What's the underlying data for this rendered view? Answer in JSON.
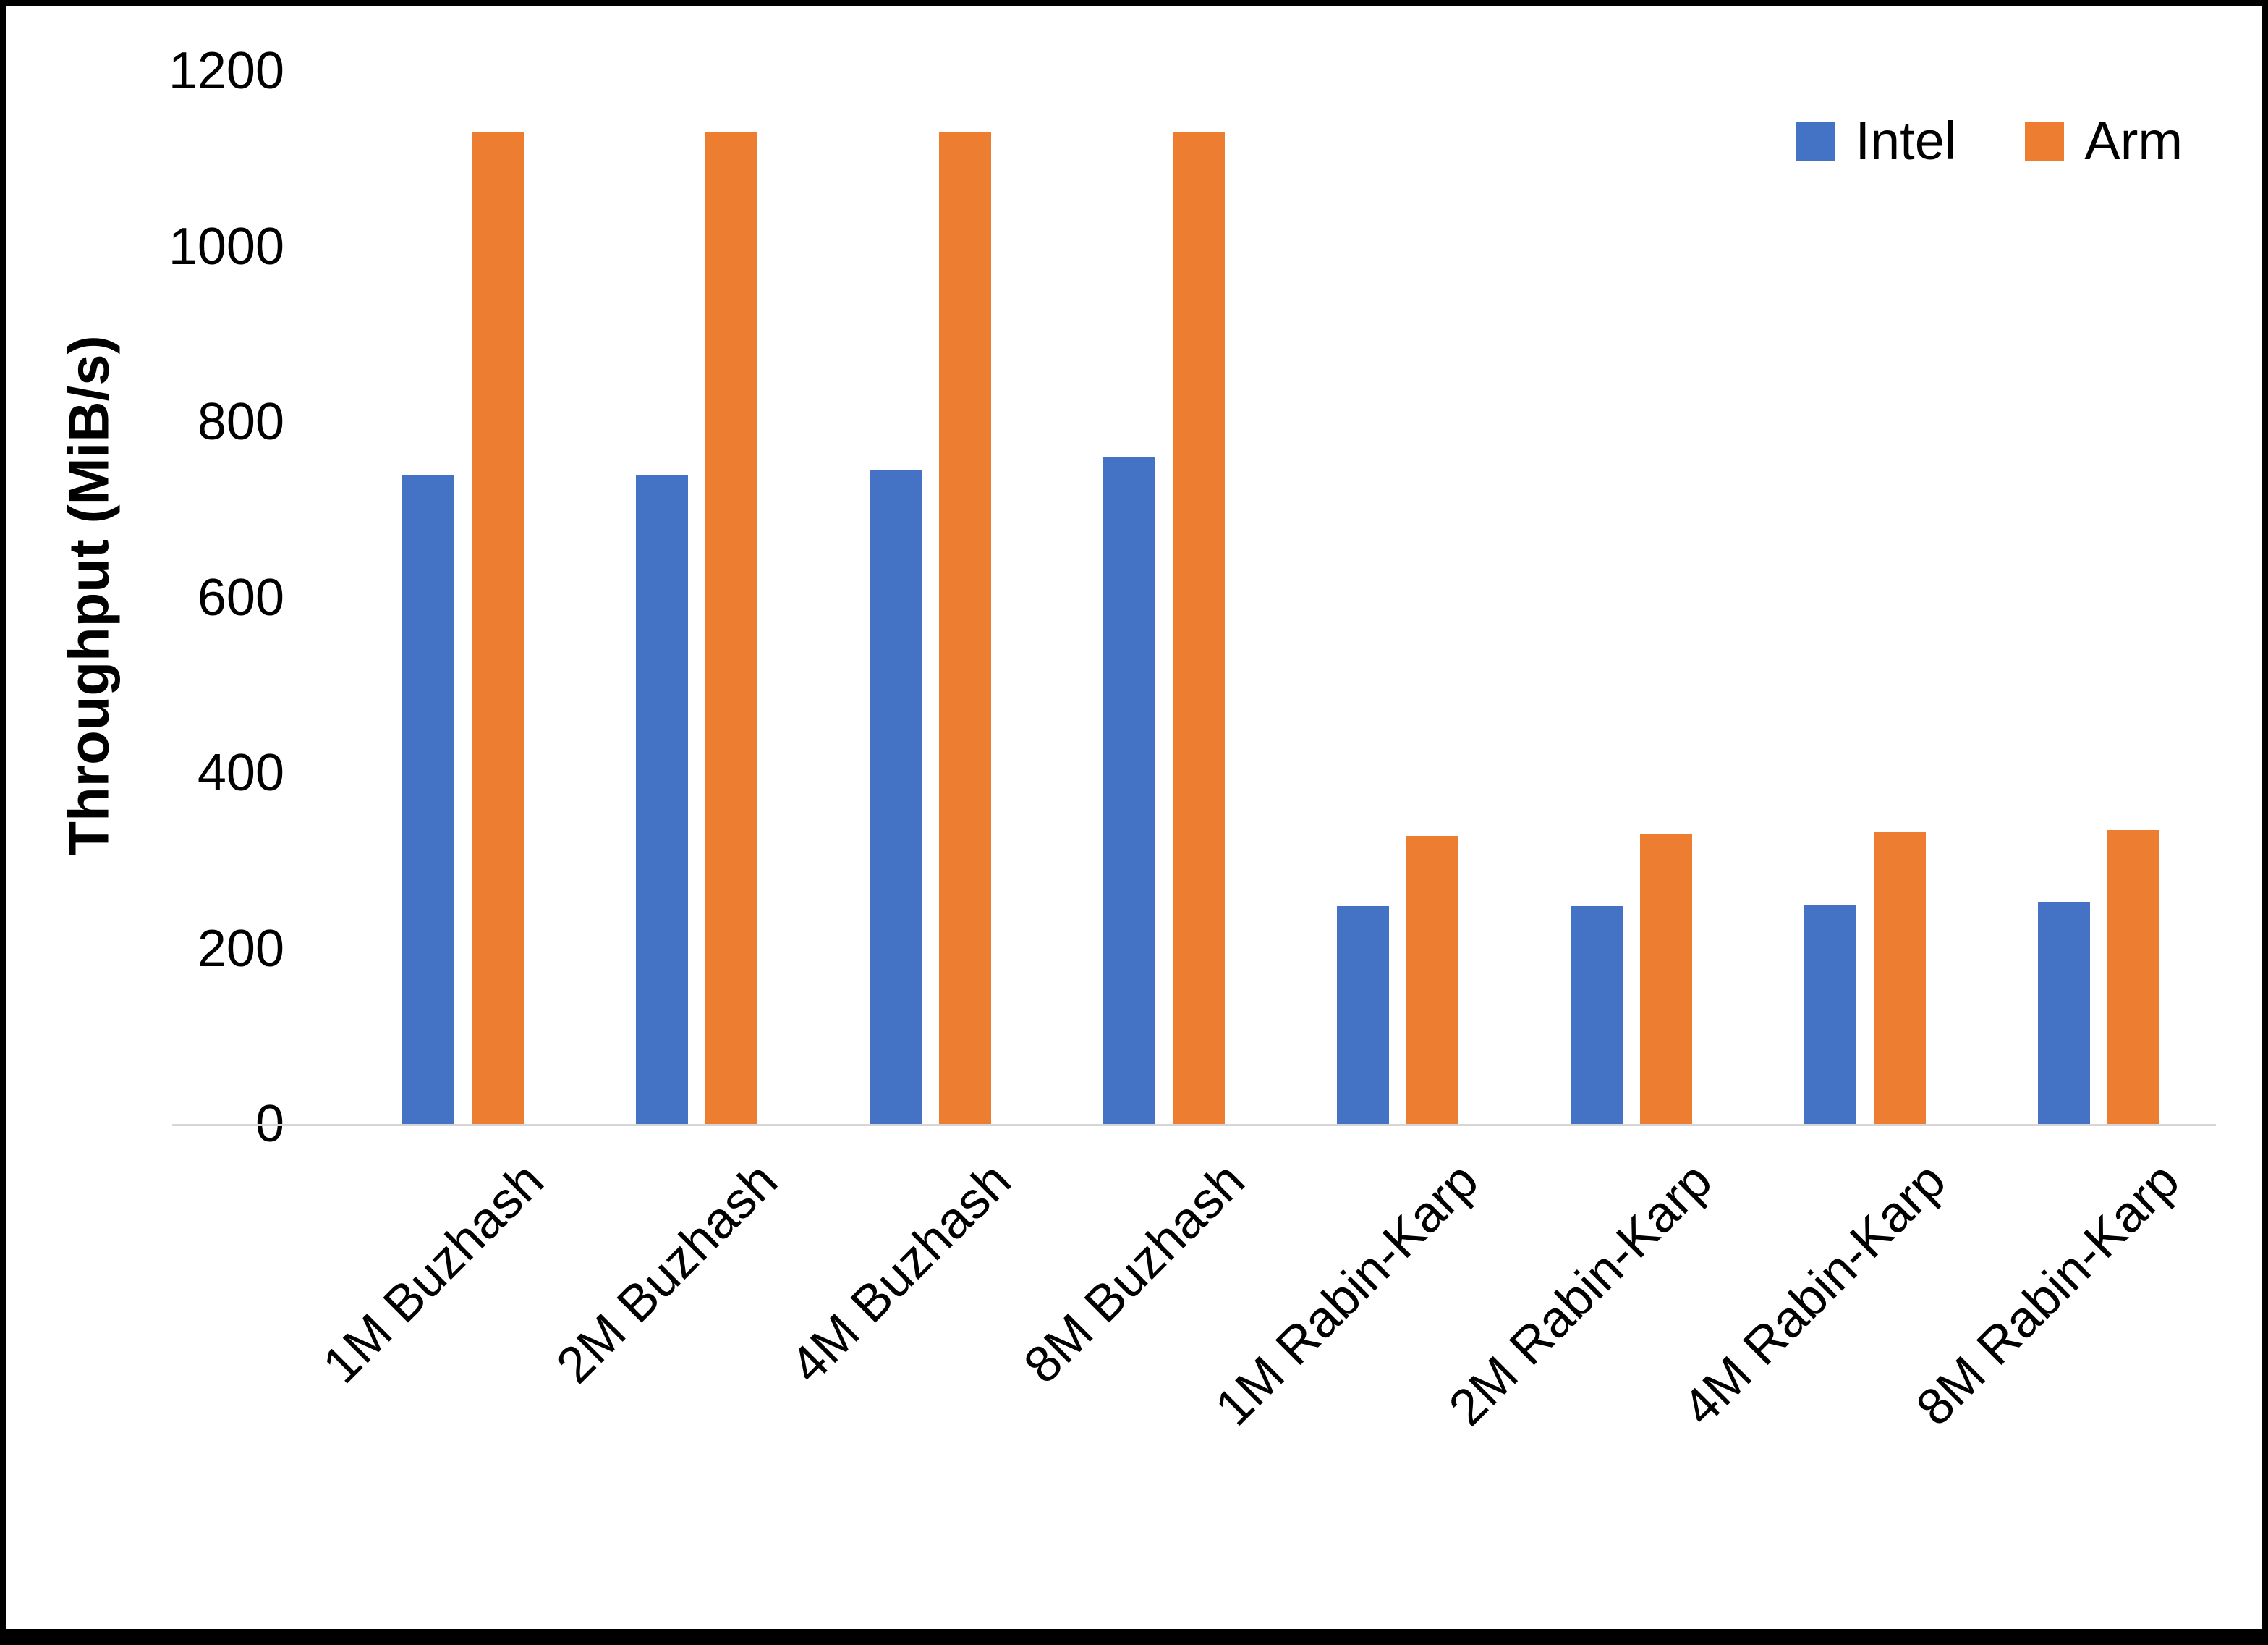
{
  "chart_data": {
    "type": "bar",
    "title": "",
    "xlabel": "",
    "ylabel": "Throughput (MiB/s)",
    "ylim": [
      0,
      1200
    ],
    "yticks": [
      0,
      200,
      400,
      600,
      800,
      1000,
      1200
    ],
    "grid": false,
    "legend_position": "top-right",
    "categories": [
      "1M Buzhash",
      "2M Buzhash",
      "4M Buzhash",
      "8M Buzhash",
      "1M Rabin-Karp",
      "2M Rabin-Karp",
      "4M Rabin-Karp",
      "8M Rabin-Karp"
    ],
    "series": [
      {
        "name": "Intel",
        "color": "#4472C4",
        "values": [
          740,
          740,
          745,
          760,
          248,
          248,
          250,
          252
        ]
      },
      {
        "name": "Arm",
        "color": "#ED7D31",
        "values": [
          1130,
          1130,
          1130,
          1130,
          328,
          330,
          333,
          335
        ]
      }
    ]
  }
}
